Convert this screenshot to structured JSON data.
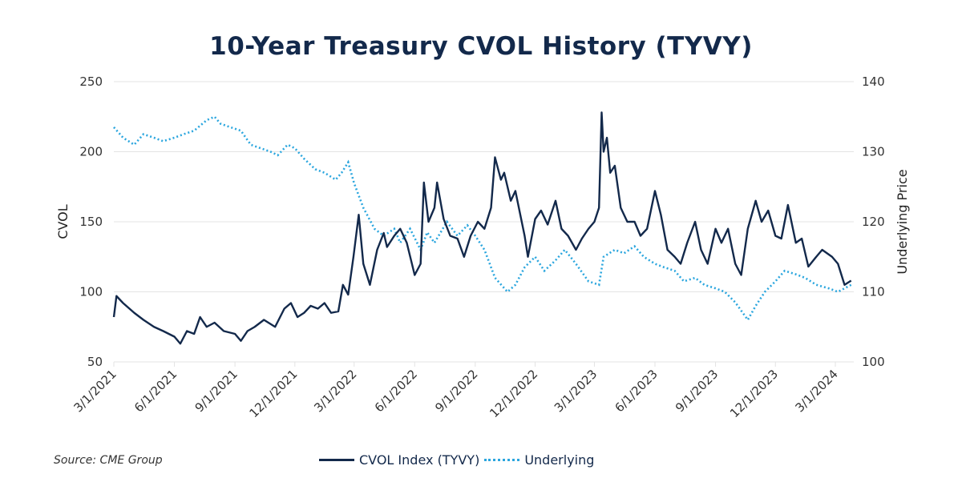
{
  "chart_data": {
    "type": "line",
    "title": "10-Year Treasury CVOL History (TYVY)",
    "source": "Source: CME Group",
    "ylabel": "CVOL",
    "y2label": "Underlying Price",
    "ylim": [
      50,
      250
    ],
    "y2lim": [
      100,
      140
    ],
    "yticks": [
      "250",
      "200",
      "150",
      "100",
      "50"
    ],
    "y2ticks": [
      "140",
      "130",
      "120",
      "110",
      "100"
    ],
    "xticks": [
      "3/1/2021",
      "6/1/2021",
      "9/1/2021",
      "12/1/2021",
      "3/1/2022",
      "6/1/2022",
      "9/1/2022",
      "12/1/2022",
      "3/1/2023",
      "6/1/2023",
      "9/1/2023",
      "12/1/2023",
      "3/1/2024"
    ],
    "xlim": [
      "2021-03-01",
      "2024-03-25"
    ],
    "grid": true,
    "legend": "bottom",
    "colors": {
      "cvol": "#13294b",
      "underlying": "#2ba6de"
    },
    "series": [
      {
        "name": "CVOL Index (TYVY)",
        "axis": "left",
        "style": "solid",
        "points": [
          [
            "2021-03-01",
            82
          ],
          [
            "2021-03-05",
            97
          ],
          [
            "2021-03-15",
            92
          ],
          [
            "2021-04-01",
            85
          ],
          [
            "2021-04-15",
            80
          ],
          [
            "2021-05-01",
            75
          ],
          [
            "2021-05-15",
            72
          ],
          [
            "2021-06-01",
            68
          ],
          [
            "2021-06-10",
            63
          ],
          [
            "2021-06-20",
            72
          ],
          [
            "2021-07-01",
            70
          ],
          [
            "2021-07-10",
            82
          ],
          [
            "2021-07-20",
            75
          ],
          [
            "2021-08-01",
            78
          ],
          [
            "2021-08-15",
            72
          ],
          [
            "2021-09-01",
            70
          ],
          [
            "2021-09-10",
            65
          ],
          [
            "2021-09-20",
            72
          ],
          [
            "2021-10-01",
            75
          ],
          [
            "2021-10-15",
            80
          ],
          [
            "2021-11-01",
            75
          ],
          [
            "2021-11-15",
            88
          ],
          [
            "2021-11-25",
            92
          ],
          [
            "2021-12-05",
            82
          ],
          [
            "2021-12-15",
            85
          ],
          [
            "2021-12-25",
            90
          ],
          [
            "2022-01-05",
            88
          ],
          [
            "2022-01-15",
            92
          ],
          [
            "2022-01-25",
            85
          ],
          [
            "2022-02-05",
            86
          ],
          [
            "2022-02-12",
            105
          ],
          [
            "2022-02-20",
            98
          ],
          [
            "2022-02-28",
            125
          ],
          [
            "2022-03-08",
            155
          ],
          [
            "2022-03-15",
            120
          ],
          [
            "2022-03-25",
            105
          ],
          [
            "2022-04-05",
            130
          ],
          [
            "2022-04-15",
            142
          ],
          [
            "2022-04-20",
            132
          ],
          [
            "2022-05-01",
            140
          ],
          [
            "2022-05-10",
            145
          ],
          [
            "2022-05-20",
            135
          ],
          [
            "2022-06-01",
            112
          ],
          [
            "2022-06-10",
            120
          ],
          [
            "2022-06-15",
            178
          ],
          [
            "2022-06-22",
            150
          ],
          [
            "2022-07-01",
            160
          ],
          [
            "2022-07-05",
            178
          ],
          [
            "2022-07-15",
            152
          ],
          [
            "2022-07-25",
            140
          ],
          [
            "2022-08-05",
            138
          ],
          [
            "2022-08-15",
            125
          ],
          [
            "2022-08-25",
            140
          ],
          [
            "2022-09-05",
            150
          ],
          [
            "2022-09-15",
            145
          ],
          [
            "2022-09-25",
            160
          ],
          [
            "2022-10-01",
            196
          ],
          [
            "2022-10-10",
            180
          ],
          [
            "2022-10-15",
            185
          ],
          [
            "2022-10-25",
            165
          ],
          [
            "2022-11-01",
            172
          ],
          [
            "2022-11-15",
            140
          ],
          [
            "2022-11-20",
            125
          ],
          [
            "2022-12-01",
            152
          ],
          [
            "2022-12-10",
            158
          ],
          [
            "2022-12-20",
            148
          ],
          [
            "2023-01-01",
            165
          ],
          [
            "2023-01-10",
            145
          ],
          [
            "2023-01-20",
            140
          ],
          [
            "2023-02-01",
            130
          ],
          [
            "2023-02-10",
            138
          ],
          [
            "2023-02-20",
            145
          ],
          [
            "2023-03-01",
            150
          ],
          [
            "2023-03-08",
            160
          ],
          [
            "2023-03-12",
            228
          ],
          [
            "2023-03-15",
            200
          ],
          [
            "2023-03-20",
            210
          ],
          [
            "2023-03-25",
            185
          ],
          [
            "2023-04-01",
            190
          ],
          [
            "2023-04-10",
            160
          ],
          [
            "2023-04-20",
            150
          ],
          [
            "2023-05-01",
            150
          ],
          [
            "2023-05-10",
            140
          ],
          [
            "2023-05-20",
            145
          ],
          [
            "2023-06-01",
            172
          ],
          [
            "2023-06-10",
            155
          ],
          [
            "2023-06-20",
            130
          ],
          [
            "2023-07-01",
            125
          ],
          [
            "2023-07-10",
            120
          ],
          [
            "2023-07-20",
            135
          ],
          [
            "2023-08-01",
            150
          ],
          [
            "2023-08-10",
            130
          ],
          [
            "2023-08-20",
            120
          ],
          [
            "2023-09-01",
            145
          ],
          [
            "2023-09-10",
            135
          ],
          [
            "2023-09-20",
            145
          ],
          [
            "2023-10-01",
            120
          ],
          [
            "2023-10-10",
            112
          ],
          [
            "2023-10-20",
            145
          ],
          [
            "2023-11-01",
            165
          ],
          [
            "2023-11-10",
            150
          ],
          [
            "2023-11-20",
            158
          ],
          [
            "2023-12-01",
            140
          ],
          [
            "2023-12-10",
            138
          ],
          [
            "2023-12-20",
            162
          ],
          [
            "2024-01-01",
            135
          ],
          [
            "2024-01-10",
            138
          ],
          [
            "2024-01-20",
            118
          ],
          [
            "2024-02-01",
            125
          ],
          [
            "2024-02-10",
            130
          ],
          [
            "2024-02-25",
            125
          ],
          [
            "2024-03-05",
            120
          ],
          [
            "2024-03-15",
            105
          ],
          [
            "2024-03-25",
            108
          ]
        ]
      },
      {
        "name": "Underlying",
        "axis": "right",
        "style": "dotted",
        "points": [
          [
            "2021-03-01",
            133.5
          ],
          [
            "2021-03-15",
            132
          ],
          [
            "2021-04-01",
            131
          ],
          [
            "2021-04-15",
            132.5
          ],
          [
            "2021-05-01",
            132
          ],
          [
            "2021-05-15",
            131.5
          ],
          [
            "2021-06-01",
            132
          ],
          [
            "2021-06-15",
            132.5
          ],
          [
            "2021-07-01",
            133
          ],
          [
            "2021-07-20",
            134.5
          ],
          [
            "2021-08-01",
            135
          ],
          [
            "2021-08-10",
            134
          ],
          [
            "2021-08-25",
            133.5
          ],
          [
            "2021-09-10",
            133
          ],
          [
            "2021-09-25",
            131
          ],
          [
            "2021-10-10",
            130.5
          ],
          [
            "2021-10-25",
            130
          ],
          [
            "2021-11-05",
            129.5
          ],
          [
            "2021-11-20",
            131
          ],
          [
            "2021-12-01",
            130.5
          ],
          [
            "2021-12-15",
            129
          ],
          [
            "2022-01-01",
            127.5
          ],
          [
            "2022-01-15",
            127
          ],
          [
            "2022-02-01",
            126
          ],
          [
            "2022-02-10",
            127
          ],
          [
            "2022-02-20",
            128.5
          ],
          [
            "2022-03-01",
            125.5
          ],
          [
            "2022-03-15",
            122
          ],
          [
            "2022-04-01",
            119
          ],
          [
            "2022-04-15",
            118
          ],
          [
            "2022-05-01",
            119
          ],
          [
            "2022-05-10",
            117
          ],
          [
            "2022-05-25",
            119
          ],
          [
            "2022-06-10",
            116
          ],
          [
            "2022-06-20",
            118.5
          ],
          [
            "2022-07-01",
            117
          ],
          [
            "2022-07-20",
            120
          ],
          [
            "2022-08-05",
            118
          ],
          [
            "2022-08-20",
            119.5
          ],
          [
            "2022-09-01",
            118
          ],
          [
            "2022-09-15",
            116
          ],
          [
            "2022-10-01",
            112
          ],
          [
            "2022-10-20",
            110
          ],
          [
            "2022-11-01",
            111
          ],
          [
            "2022-11-15",
            113.5
          ],
          [
            "2022-12-01",
            115
          ],
          [
            "2022-12-15",
            113
          ],
          [
            "2023-01-01",
            114.5
          ],
          [
            "2023-01-15",
            116
          ],
          [
            "2023-02-01",
            114
          ],
          [
            "2023-02-20",
            111.5
          ],
          [
            "2023-03-08",
            111
          ],
          [
            "2023-03-15",
            115
          ],
          [
            "2023-04-01",
            116
          ],
          [
            "2023-04-15",
            115.5
          ],
          [
            "2023-05-01",
            116.5
          ],
          [
            "2023-05-15",
            115
          ],
          [
            "2023-06-01",
            114
          ],
          [
            "2023-06-15",
            113.5
          ],
          [
            "2023-07-01",
            113
          ],
          [
            "2023-07-15",
            111.5
          ],
          [
            "2023-08-01",
            112
          ],
          [
            "2023-08-15",
            111
          ],
          [
            "2023-09-01",
            110.5
          ],
          [
            "2023-09-15",
            110
          ],
          [
            "2023-10-01",
            108.5
          ],
          [
            "2023-10-20",
            106
          ],
          [
            "2023-11-01",
            108
          ],
          [
            "2023-11-15",
            110
          ],
          [
            "2023-12-01",
            111.5
          ],
          [
            "2023-12-15",
            113
          ],
          [
            "2024-01-01",
            112.5
          ],
          [
            "2024-01-15",
            112
          ],
          [
            "2024-02-01",
            111
          ],
          [
            "2024-02-20",
            110.5
          ],
          [
            "2024-03-05",
            110
          ],
          [
            "2024-03-25",
            111
          ]
        ]
      }
    ]
  }
}
